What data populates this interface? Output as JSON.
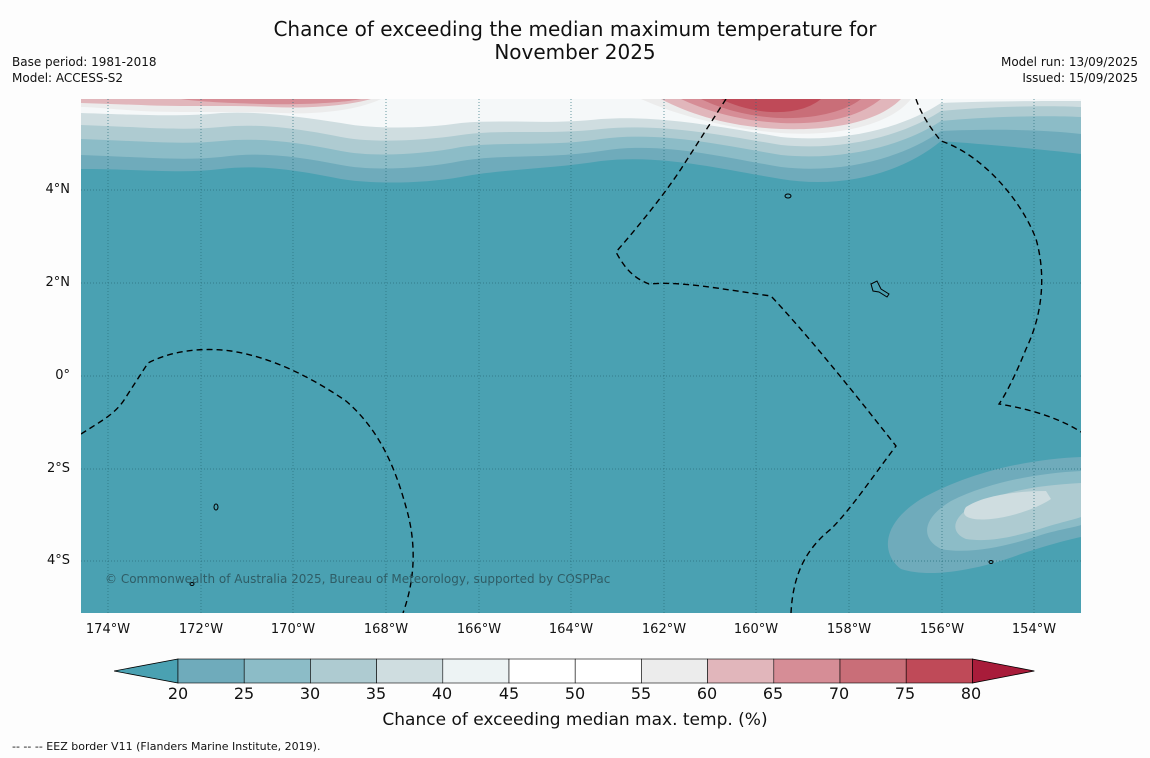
{
  "title_line1": "Chance of exceeding the median maximum temperature for",
  "title_line2": "November 2025",
  "base_period": "Base period: 1981-2018",
  "model": "Model: ACCESS-S2",
  "model_run": "Model run: 13/09/2025",
  "issued": "Issued: 15/09/2025",
  "copyright": "© Commonwealth of Australia 2025, Bureau of Meteorology, supported by COSPPac",
  "lat_labels": [
    "4°N",
    "2°N",
    "0°",
    "2°S",
    "4°S"
  ],
  "lon_labels": [
    "174°W",
    "172°W",
    "170°W",
    "168°W",
    "166°W",
    "164°W",
    "162°W",
    "160°W",
    "158°W",
    "156°W",
    "154°W"
  ],
  "colorbar": {
    "ticks": [
      "20",
      "25",
      "30",
      "35",
      "40",
      "45",
      "50",
      "55",
      "60",
      "65",
      "70",
      "75",
      "80"
    ],
    "colors": [
      "#4aa1b2",
      "#6fabbb",
      "#8cbcc7",
      "#aecbd1",
      "#cfdde0",
      "#edf3f4",
      "#ffffff",
      "#ffffff",
      "#ececec",
      "#e1b6bb",
      "#d68d96",
      "#c96e78",
      "#bf4a58",
      "#a81c3a"
    ],
    "title": "Chance of exceeding median max. temp. (%)"
  },
  "footnote": "--  --  -- EEZ border V11 (Flanders Marine Institute, 2019)."
}
